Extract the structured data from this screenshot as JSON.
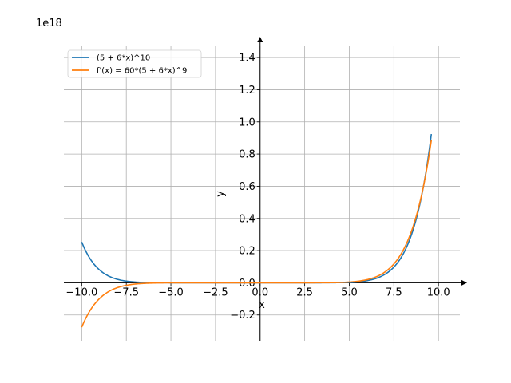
{
  "chart_data": {
    "type": "line",
    "title": "",
    "offset_text": "1e18",
    "xlabel": "x",
    "ylabel": "y",
    "xlim": [
      -11.0,
      11.2
    ],
    "ylim": [
      -0.36,
      1.47
    ],
    "grid": true,
    "legend_position": "top-left",
    "x_ticks": [
      -10.0,
      -7.5,
      -5.0,
      -2.5,
      0.0,
      2.5,
      5.0,
      7.5,
      10.0
    ],
    "x_tick_labels": [
      "−10.0",
      "−7.5",
      "−5.0",
      "−2.5",
      "0.0",
      "2.5",
      "5.0",
      "7.5",
      "10.0"
    ],
    "y_ticks": [
      -0.2,
      0.0,
      0.2,
      0.4,
      0.6,
      0.8,
      1.0,
      1.2,
      1.4
    ],
    "y_tick_labels": [
      "−0.2",
      "0.0",
      "0.2",
      "0.4",
      "0.6",
      "0.8",
      "1.0",
      "1.2",
      "1.4"
    ],
    "series": [
      {
        "name": "(5 + 6*x)^10",
        "color": "#1f77b4",
        "function": "f",
        "x_range": [
          -10.0,
          9.6
        ]
      },
      {
        "name": "f'(x) = 60*(5 + 6*x)^9",
        "color": "#ff7f0e",
        "function": "df",
        "x_range": [
          -10.0,
          9.6
        ]
      }
    ]
  }
}
